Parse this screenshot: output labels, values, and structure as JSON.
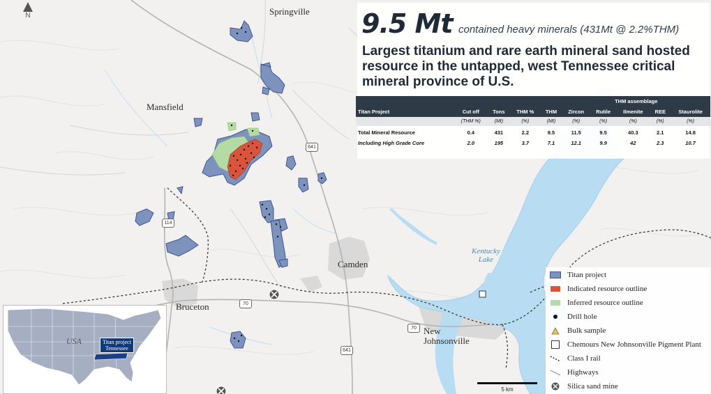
{
  "north": {
    "label": "N"
  },
  "towns": {
    "springville": "Springville",
    "mansfield": "Mansfield",
    "camden": "Camden",
    "bruceton": "Bruceton",
    "new_johnsonville": "New\nJohnsonville"
  },
  "lake": {
    "label": "Kentucky\nLake"
  },
  "routes": {
    "r641a": "641",
    "r641b": "641",
    "r114": "114",
    "r70a": "70",
    "r70b": "70"
  },
  "header": {
    "headline": "9.5 Mt",
    "subtitle": "contained heavy minerals (431Mt @ 2.2%THM)",
    "tagline": "Largest titanium and rare earth mineral sand hosted resource in the untapped, west Tennessee critical mineral province of U.S."
  },
  "table": {
    "group_header": "THM assemblage",
    "columns": [
      "Titan Project",
      "Cut off",
      "Tons",
      "THM %",
      "THM",
      "Zircon",
      "Rutile",
      "Ilmenite",
      "REE",
      "Staurolite"
    ],
    "units": [
      "",
      "(THM %)",
      "(Mt)",
      "(%)",
      "(Mt)",
      "(%)",
      "(%)",
      "(%)",
      "(%)",
      "(%)"
    ],
    "rows": [
      [
        "Total Mineral Resource",
        "0.4",
        "431",
        "2.2",
        "9.5",
        "11.5",
        "9.5",
        "40.3",
        "2.1",
        "14.8"
      ],
      [
        "Including High Grade Core",
        "2.0",
        "195",
        "3.7",
        "7.1",
        "12.1",
        "9.9",
        "42",
        "2.3",
        "10.7"
      ]
    ]
  },
  "legend": {
    "items": [
      {
        "label": "Titan project",
        "icon": "titan-project-swatch",
        "color": "#7d93bd"
      },
      {
        "label": "Indicated resource outline",
        "icon": "indicated-resource-swatch",
        "color": "#d9543b"
      },
      {
        "label": "Inferred resource outline",
        "icon": "inferred-resource-swatch",
        "color": "#b5dba4"
      },
      {
        "label": "Drill hole",
        "icon": "drill-hole-icon",
        "color": "#111111"
      },
      {
        "label": "Bulk sample",
        "icon": "bulk-sample-icon",
        "color": "#e4c45a"
      },
      {
        "label": "Chemours New Johnsonville Pigment Plant",
        "icon": "pigment-plant-icon",
        "color": "#ffffff"
      },
      {
        "label": "Class I rail",
        "icon": "rail-icon",
        "color": "#222222"
      },
      {
        "label": "Highways",
        "icon": "highway-icon",
        "color": "#8ea6c9"
      },
      {
        "label": "Silica sand mine",
        "icon": "silica-mine-icon",
        "color": "#555555"
      }
    ]
  },
  "inset": {
    "country": "USA",
    "tag": "Titan project\nTennessee"
  },
  "scale": {
    "label": "5 km"
  },
  "colors": {
    "water": "#b8dcf2",
    "project": "#7d93bd",
    "indicated": "#d9543b",
    "inferred": "#b5dba4",
    "header_dark": "#2e3a46"
  }
}
